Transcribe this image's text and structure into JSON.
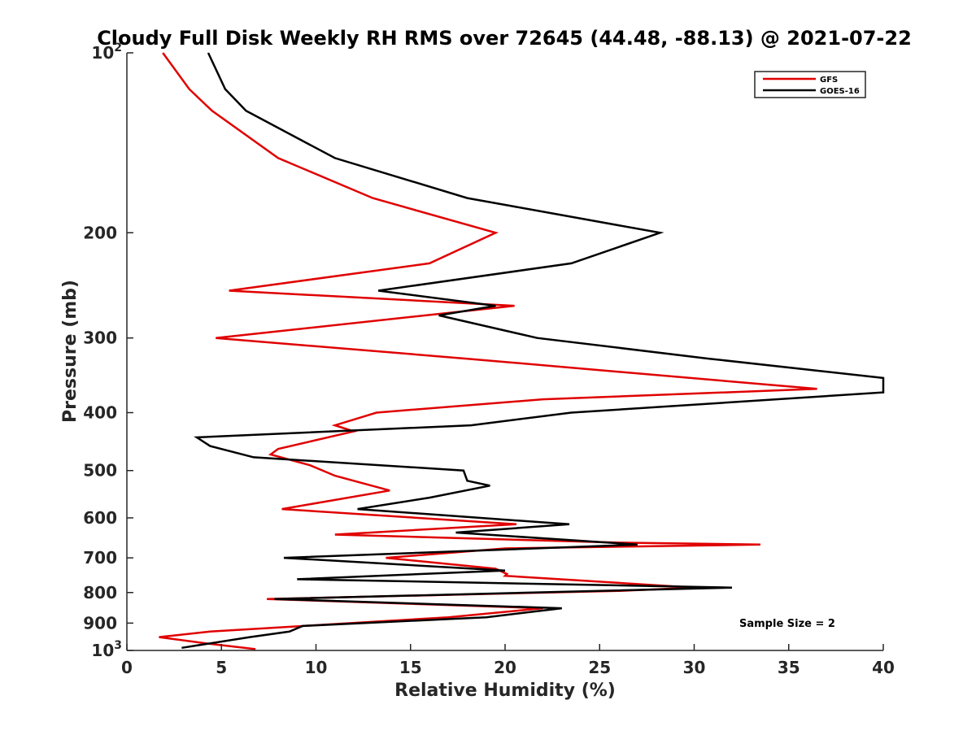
{
  "chart_data": {
    "type": "line",
    "title": "Cloudy Full Disk Weekly RH RMS over 72645 (44.48, -88.13) @ 2021-07-22",
    "xlabel": "Relative Humidity (%)",
    "ylabel": "Pressure (mb)",
    "xlim": [
      0,
      40
    ],
    "ylim": [
      100,
      1000
    ],
    "y_scale": "log",
    "y_reversed": true,
    "x_ticks": [
      0,
      5,
      10,
      15,
      20,
      25,
      30,
      35,
      40
    ],
    "y_ticks": [
      {
        "value": 100,
        "base": "10",
        "exp": "2"
      },
      {
        "value": 200,
        "label": "200"
      },
      {
        "value": 300,
        "label": "300"
      },
      {
        "value": 400,
        "label": "400"
      },
      {
        "value": 500,
        "label": "500"
      },
      {
        "value": 600,
        "label": "600"
      },
      {
        "value": 700,
        "label": "700"
      },
      {
        "value": 800,
        "label": "800"
      },
      {
        "value": 900,
        "label": "900"
      },
      {
        "value": 1000,
        "base": "10",
        "exp": "3"
      }
    ],
    "grid": false,
    "legend_position": "top-right",
    "annotation": "Sample Size = 2",
    "series": [
      {
        "name": "GFS",
        "color": "#e00000",
        "points": [
          [
            1.9,
            100
          ],
          [
            3.3,
            115
          ],
          [
            4.5,
            125
          ],
          [
            8.0,
            150
          ],
          [
            13.0,
            175
          ],
          [
            19.5,
            200
          ],
          [
            16.0,
            225
          ],
          [
            5.4,
            250
          ],
          [
            20.5,
            265
          ],
          [
            4.7,
            300
          ],
          [
            18.0,
            325
          ],
          [
            36.5,
            365
          ],
          [
            22.0,
            380
          ],
          [
            13.2,
            400
          ],
          [
            11.0,
            420
          ],
          [
            12.0,
            430
          ],
          [
            8.0,
            460
          ],
          [
            7.6,
            470
          ],
          [
            9.7,
            490
          ],
          [
            11.0,
            510
          ],
          [
            13.9,
            540
          ],
          [
            8.2,
            580
          ],
          [
            20.6,
            615
          ],
          [
            11.0,
            640
          ],
          [
            26.0,
            660
          ],
          [
            33.5,
            665
          ],
          [
            20.0,
            675
          ],
          [
            13.7,
            700
          ],
          [
            19.5,
            730
          ],
          [
            20.1,
            745
          ],
          [
            20.0,
            750
          ],
          [
            30.0,
            785
          ],
          [
            26.0,
            795
          ],
          [
            7.4,
            820
          ],
          [
            22.0,
            850
          ],
          [
            17.0,
            880
          ],
          [
            4.4,
            930
          ],
          [
            1.7,
            950
          ],
          [
            4.4,
            975
          ],
          [
            6.8,
            995
          ]
        ]
      },
      {
        "name": "GOES-16",
        "color": "#000000",
        "points": [
          [
            4.3,
            100
          ],
          [
            5.2,
            115
          ],
          [
            6.3,
            125
          ],
          [
            11.0,
            150
          ],
          [
            18.0,
            175
          ],
          [
            28.2,
            200
          ],
          [
            23.5,
            225
          ],
          [
            13.3,
            250
          ],
          [
            19.5,
            265
          ],
          [
            16.5,
            275
          ],
          [
            21.7,
            300
          ],
          [
            30.8,
            325
          ],
          [
            36.4,
            340
          ],
          [
            40.0,
            350
          ],
          [
            40.0,
            370
          ],
          [
            23.5,
            400
          ],
          [
            18.2,
            420
          ],
          [
            3.7,
            440
          ],
          [
            4.4,
            455
          ],
          [
            6.7,
            475
          ],
          [
            17.8,
            500
          ],
          [
            18.0,
            520
          ],
          [
            19.2,
            530
          ],
          [
            16.0,
            555
          ],
          [
            12.2,
            580
          ],
          [
            23.4,
            615
          ],
          [
            17.4,
            635
          ],
          [
            27.0,
            665
          ],
          [
            8.3,
            700
          ],
          [
            20.0,
            735
          ],
          [
            9.0,
            760
          ],
          [
            32.0,
            785
          ],
          [
            7.8,
            820
          ],
          [
            23.0,
            850
          ],
          [
            19.0,
            880
          ],
          [
            9.3,
            910
          ],
          [
            8.6,
            930
          ],
          [
            6.5,
            950
          ],
          [
            2.9,
            990
          ]
        ]
      }
    ]
  }
}
